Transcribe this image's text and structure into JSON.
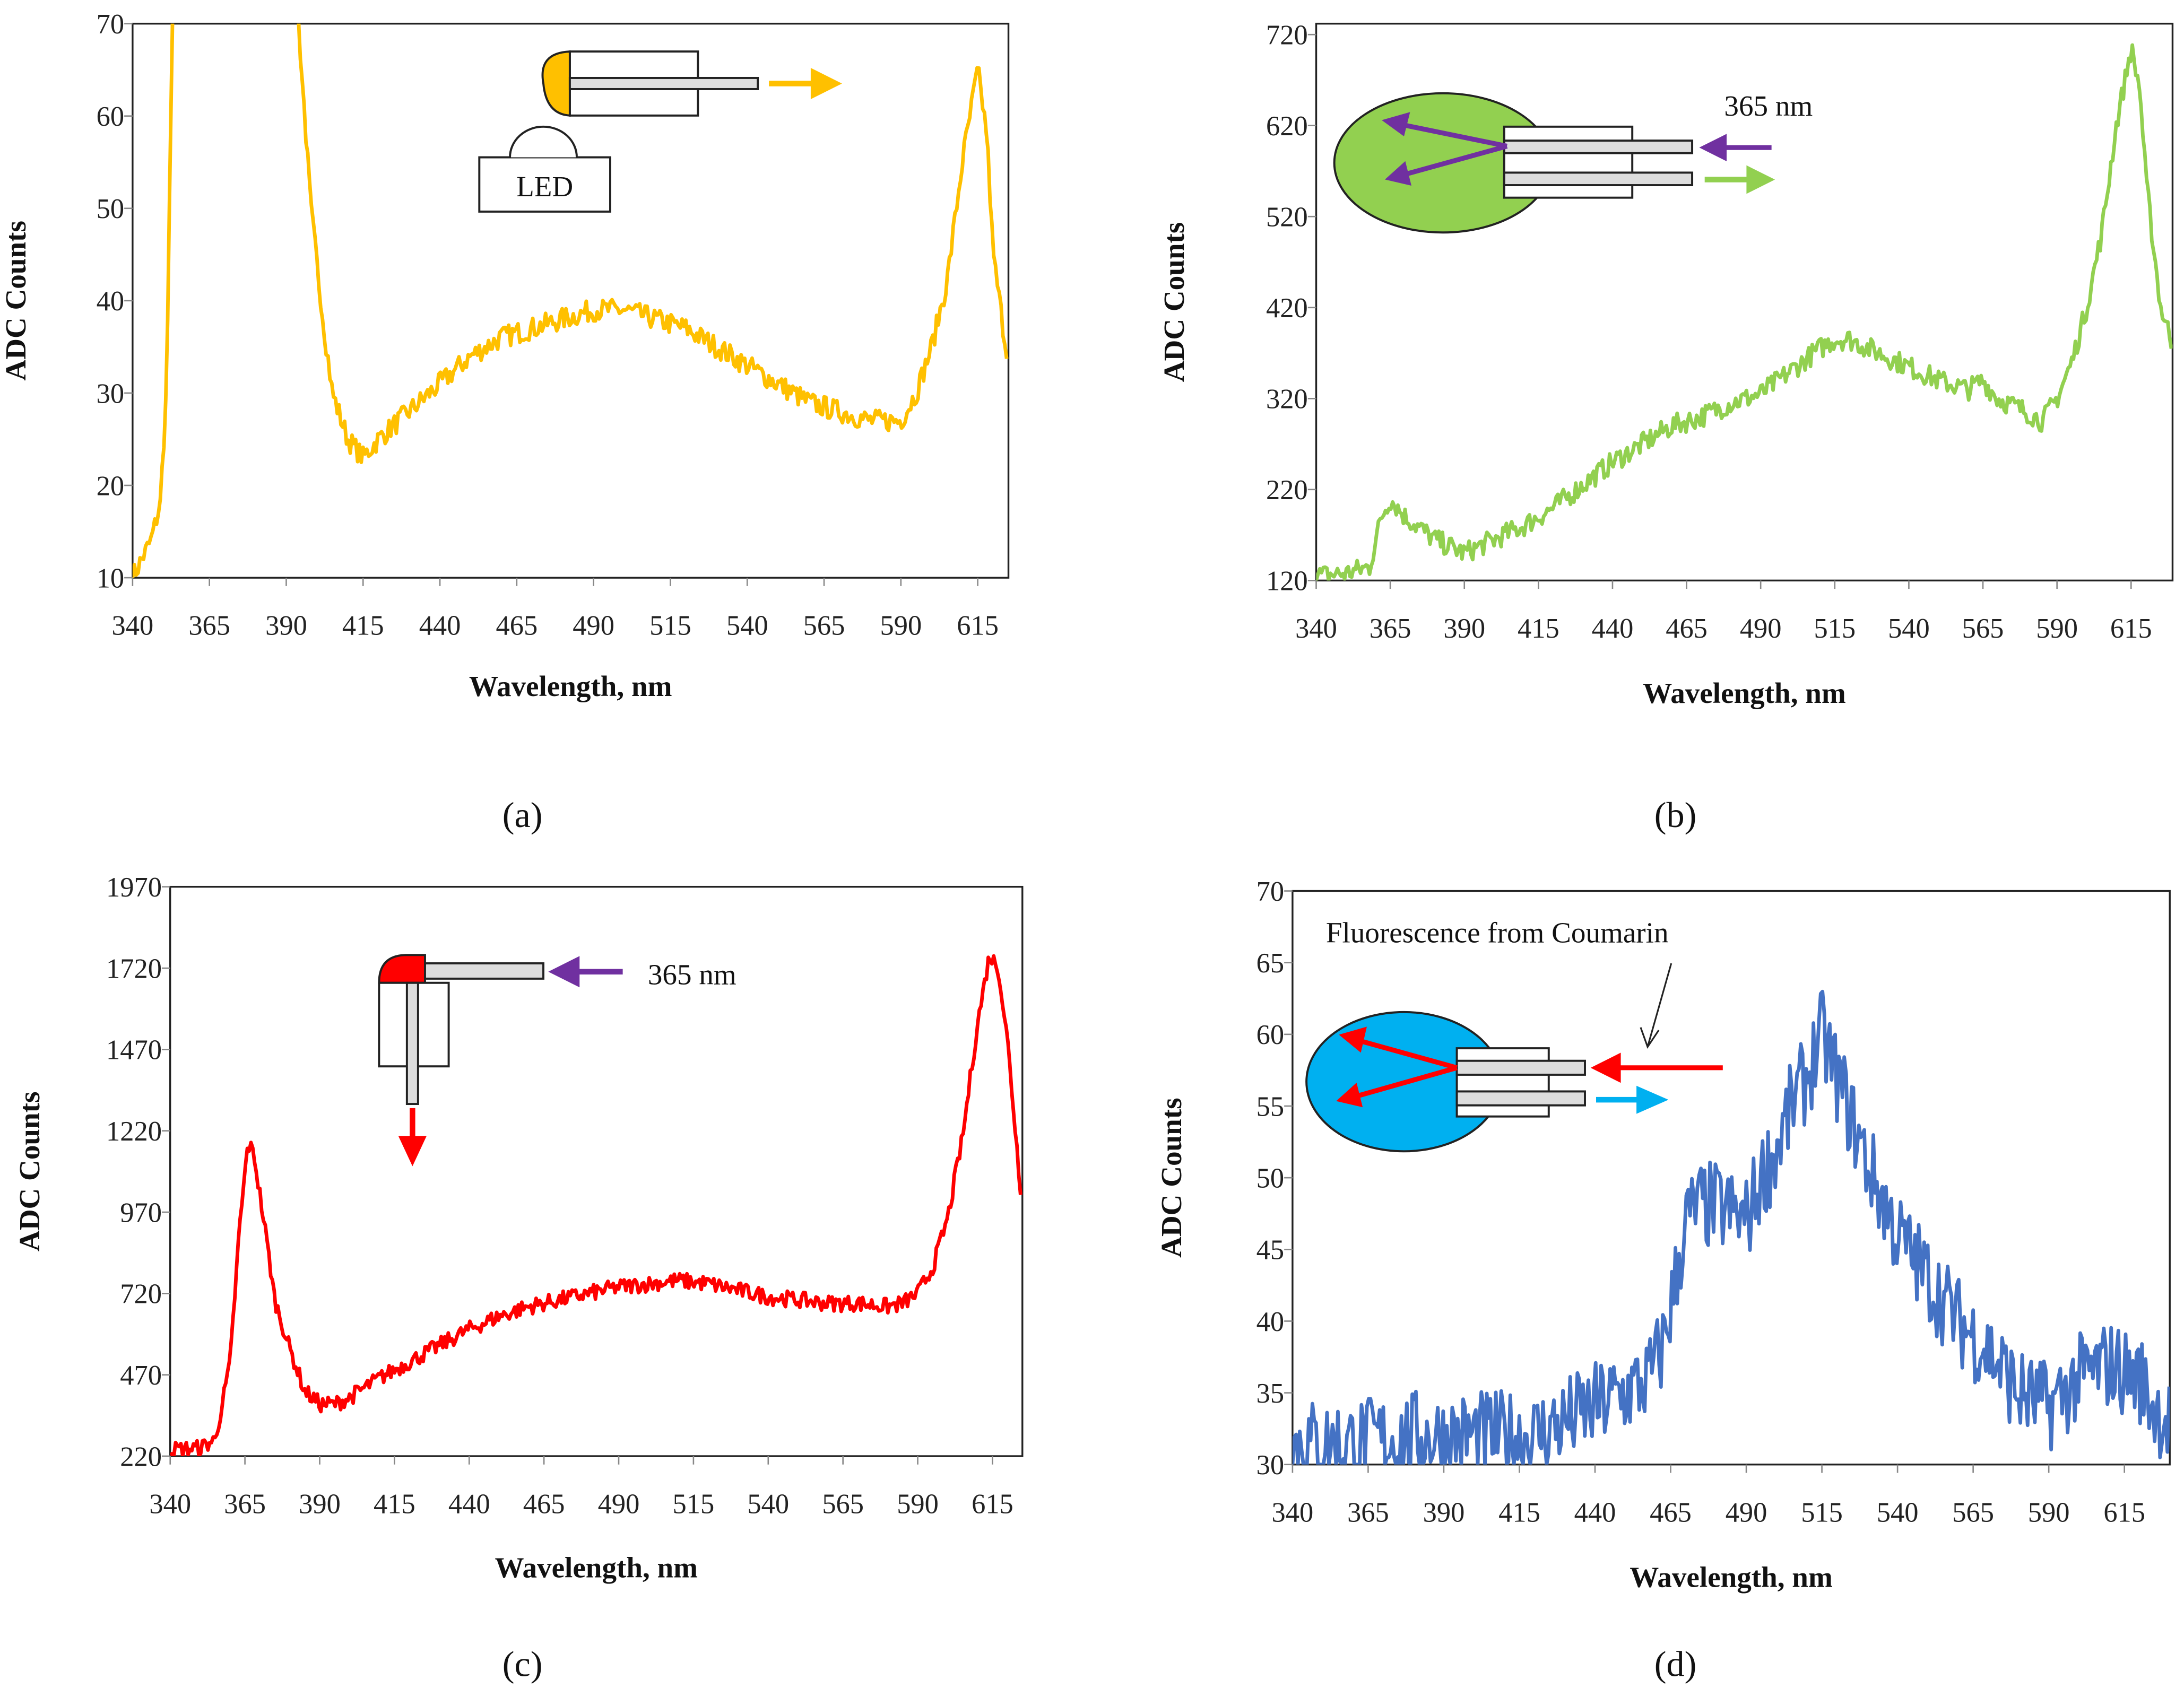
{
  "chart_data": [
    {
      "panel": "a",
      "caption": "(a)",
      "type": "line",
      "xlabel": "Wavelength, nm",
      "ylabel": "ADC Counts",
      "xlim": [
        340,
        625
      ],
      "ylim": [
        10,
        70
      ],
      "xticks": [
        "340",
        "365",
        "390",
        "415",
        "440",
        "465",
        "490",
        "515",
        "540",
        "565",
        "590",
        "615"
      ],
      "yticks": [
        "10",
        "20",
        "30",
        "40",
        "50",
        "60",
        "70"
      ],
      "color": "#ffc000",
      "noise": 1.2,
      "x": [
        340,
        343,
        346,
        349,
        351,
        353,
        355,
        390,
        394,
        398,
        402,
        405,
        410,
        415,
        420,
        430,
        440,
        450,
        460,
        470,
        480,
        490,
        500,
        510,
        520,
        530,
        540,
        550,
        560,
        570,
        580,
        590,
        595,
        600,
        605,
        610,
        615,
        618,
        620,
        625
      ],
      "y": [
        10,
        12,
        14,
        18,
        30,
        70,
        120,
        120,
        70,
        50,
        38,
        30,
        25,
        23,
        25,
        28,
        31,
        34,
        36,
        37,
        38,
        39,
        39,
        38,
        37,
        35,
        33,
        31,
        29,
        28,
        27,
        27,
        30,
        35,
        42,
        55,
        65,
        58,
        45,
        33
      ],
      "inset": {
        "label": "LED"
      }
    },
    {
      "panel": "b",
      "caption": "(b)",
      "type": "line",
      "xlabel": "Wavelength, nm",
      "ylabel": "ADC Counts",
      "xlim": [
        340,
        629
      ],
      "ylim": [
        120,
        732
      ],
      "xticks": [
        "340",
        "365",
        "390",
        "415",
        "440",
        "465",
        "490",
        "515",
        "540",
        "565",
        "590",
        "615"
      ],
      "yticks": [
        "120",
        "220",
        "320",
        "420",
        "520",
        "620",
        "720"
      ],
      "color": "#92d050",
      "noise": 12,
      "x": [
        340,
        350,
        358,
        362,
        365,
        370,
        380,
        390,
        400,
        410,
        420,
        430,
        440,
        450,
        460,
        470,
        480,
        490,
        500,
        510,
        515,
        520,
        530,
        540,
        550,
        560,
        565,
        570,
        580,
        585,
        590,
        595,
        600,
        605,
        610,
        615,
        618,
        620,
        625,
        629
      ],
      "y": [
        125,
        128,
        135,
        190,
        210,
        190,
        165,
        150,
        165,
        180,
        200,
        225,
        250,
        270,
        290,
        300,
        315,
        325,
        350,
        375,
        385,
        385,
        370,
        355,
        340,
        330,
        340,
        320,
        305,
        295,
        320,
        360,
        420,
        500,
        620,
        705,
        660,
        560,
        420,
        380
      ],
      "inset": {
        "label": "365 nm"
      }
    },
    {
      "panel": "c",
      "caption": "(c)",
      "type": "line",
      "xlabel": "Wavelength, nm",
      "ylabel": "ADC Counts",
      "xlim": [
        340,
        625
      ],
      "ylim": [
        220,
        1970
      ],
      "xticks": [
        "340",
        "365",
        "390",
        "415",
        "440",
        "465",
        "490",
        "515",
        "540",
        "565",
        "590",
        "615"
      ],
      "yticks": [
        "220",
        "470",
        "720",
        "970",
        "1220",
        "1470",
        "1720",
        "1970"
      ],
      "color": "#ff0000",
      "noise": 25,
      "x": [
        340,
        350,
        355,
        360,
        363,
        366,
        368,
        372,
        375,
        380,
        385,
        390,
        395,
        400,
        410,
        420,
        430,
        440,
        450,
        460,
        470,
        480,
        490,
        500,
        510,
        520,
        530,
        540,
        550,
        560,
        570,
        580,
        585,
        590,
        595,
        600,
        605,
        610,
        614,
        617,
        620,
        625
      ],
      "y": [
        240,
        245,
        270,
        500,
        900,
        1180,
        1150,
        900,
        700,
        550,
        420,
        380,
        380,
        400,
        460,
        510,
        560,
        610,
        650,
        680,
        700,
        720,
        740,
        750,
        760,
        750,
        730,
        710,
        700,
        690,
        690,
        680,
        690,
        720,
        800,
        950,
        1200,
        1550,
        1760,
        1720,
        1500,
        980
      ],
      "inset": {
        "label": "365 nm"
      }
    },
    {
      "panel": "d",
      "caption": "(d)",
      "type": "line",
      "xlabel": "Wavelength, nm",
      "ylabel": "ADC Counts",
      "xlim": [
        340,
        630
      ],
      "ylim": [
        30,
        70
      ],
      "xticks": [
        "340",
        "365",
        "390",
        "415",
        "440",
        "465",
        "490",
        "515",
        "540",
        "565",
        "590",
        "615"
      ],
      "yticks": [
        "30",
        "35",
        "40",
        "45",
        "50",
        "55",
        "60",
        "65",
        "70"
      ],
      "color": "#4472c4",
      "noise": 3.2,
      "x": [
        340,
        360,
        380,
        400,
        420,
        430,
        440,
        450,
        458,
        462,
        466,
        470,
        475,
        480,
        490,
        495,
        500,
        505,
        510,
        515,
        520,
        525,
        530,
        540,
        550,
        560,
        570,
        580,
        590,
        600,
        610,
        620,
        625,
        630
      ],
      "y": [
        31.5,
        31.5,
        32,
        32,
        32,
        33,
        34,
        35,
        36,
        38,
        42,
        47,
        48,
        48,
        47,
        50,
        52,
        55,
        57,
        60,
        57,
        54,
        51,
        46,
        43,
        40,
        38,
        35,
        34,
        36,
        37,
        36,
        34,
        33
      ],
      "inset": {
        "label": "Fluorescence from Coumarin"
      }
    }
  ]
}
